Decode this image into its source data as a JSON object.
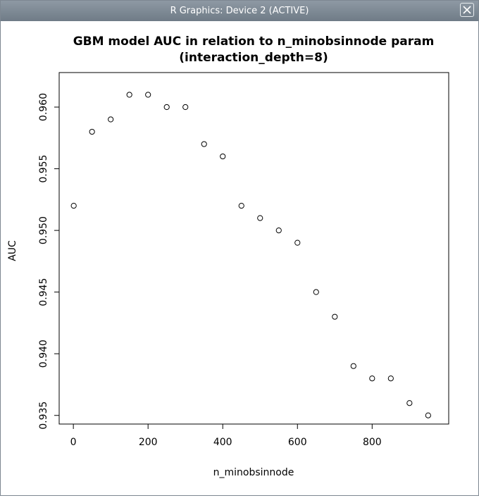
{
  "window": {
    "title": "R Graphics: Device 2 (ACTIVE)",
    "close_icon": "close-icon"
  },
  "chart_data": {
    "type": "scatter",
    "title": "GBM model AUC in relation to n_minobsinnode param",
    "subtitle": "(interaction_depth=8)",
    "xlabel": "n_minobsinnode",
    "ylabel": "AUC",
    "x_ticks": [
      0,
      200,
      400,
      600,
      800
    ],
    "x_tick_labels": [
      "0",
      "200",
      "400",
      "600",
      "800"
    ],
    "y_ticks": [
      0.935,
      0.94,
      0.945,
      0.95,
      0.955,
      0.96
    ],
    "y_tick_labels": [
      "0.935",
      "0.940",
      "0.945",
      "0.950",
      "0.955",
      "0.960"
    ],
    "xlim": [
      -38,
      1005
    ],
    "ylim": [
      0.9343,
      0.9628
    ],
    "grid": false,
    "marker": "open-circle",
    "points": [
      {
        "x": 1,
        "y": 0.952
      },
      {
        "x": 50,
        "y": 0.958
      },
      {
        "x": 100,
        "y": 0.959
      },
      {
        "x": 150,
        "y": 0.961
      },
      {
        "x": 200,
        "y": 0.961
      },
      {
        "x": 250,
        "y": 0.96
      },
      {
        "x": 300,
        "y": 0.96
      },
      {
        "x": 350,
        "y": 0.957
      },
      {
        "x": 400,
        "y": 0.956
      },
      {
        "x": 450,
        "y": 0.952
      },
      {
        "x": 500,
        "y": 0.951
      },
      {
        "x": 550,
        "y": 0.95
      },
      {
        "x": 600,
        "y": 0.949
      },
      {
        "x": 650,
        "y": 0.945
      },
      {
        "x": 700,
        "y": 0.943
      },
      {
        "x": 750,
        "y": 0.939
      },
      {
        "x": 800,
        "y": 0.938
      },
      {
        "x": 850,
        "y": 0.938
      },
      {
        "x": 900,
        "y": 0.936
      },
      {
        "x": 950,
        "y": 0.935
      }
    ]
  }
}
